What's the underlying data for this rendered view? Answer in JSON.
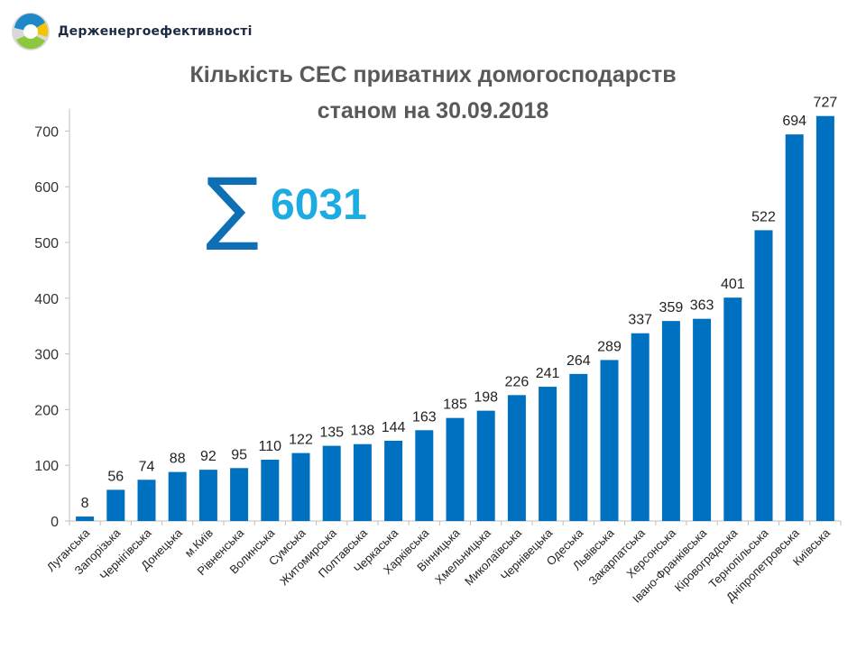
{
  "brand": {
    "name": "Держенергоефективності",
    "colors": {
      "blue": "#1e88c8",
      "green": "#8dc63f",
      "yellow": "#f5c400"
    }
  },
  "summary": {
    "symbol": "∑",
    "total": "6031",
    "symbol_color": "#0f6fb4",
    "total_color": "#1cace2"
  },
  "chart_data": {
    "type": "bar",
    "title": "Кількість СЕС приватних домогосподарств",
    "subtitle": "станом на 30.09.2018",
    "xlabel": "",
    "ylabel": "",
    "categories": [
      "Луганська",
      "Запорізька",
      "Чернігівська",
      "Донецька",
      "м.Київ",
      "Рівненська",
      "Волинська",
      "Сумська",
      "Житомирська",
      "Полтавська",
      "Черкаська",
      "Харківська",
      "Вінницька",
      "Хмельницька",
      "Миколаївська",
      "Чернівецька",
      "Одеська",
      "Львівська",
      "Закарпатська",
      "Херсонська",
      "Івано-Франківська",
      "Кіровоградська",
      "Тернопільська",
      "Дніпропетровська",
      "Київська"
    ],
    "values": [
      8,
      56,
      74,
      88,
      92,
      95,
      110,
      122,
      135,
      138,
      144,
      163,
      185,
      198,
      226,
      241,
      264,
      289,
      337,
      359,
      363,
      401,
      522,
      694,
      727
    ],
    "ylim": [
      0,
      740
    ],
    "yticks": [
      0,
      100,
      200,
      300,
      400,
      500,
      600,
      700
    ],
    "bar_color": "#0070c0",
    "grid": false,
    "legend": "none"
  }
}
